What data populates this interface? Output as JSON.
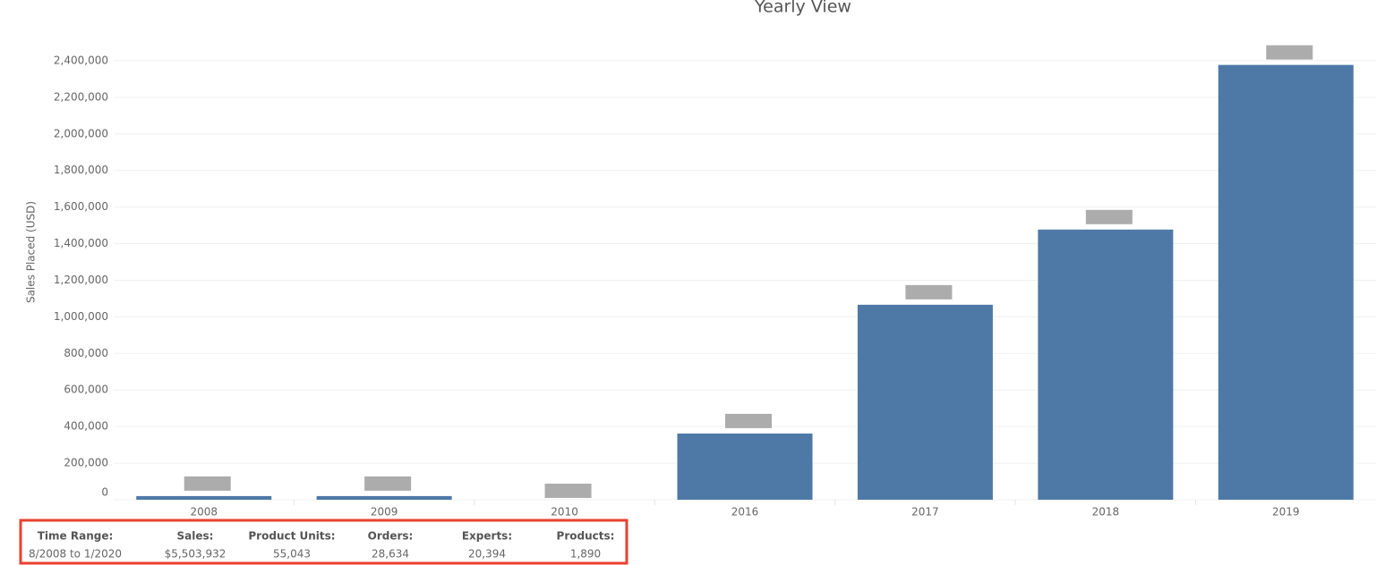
{
  "chart_data": {
    "type": "bar",
    "title": "Yearly View",
    "y_label": "Sales Placed (USD)",
    "categories": [
      "2008",
      "2009",
      "2010",
      "2016",
      "2017",
      "2018",
      "2019"
    ],
    "values": [
      20000,
      20000,
      0,
      362000,
      1066000,
      1477000,
      2377000
    ],
    "color": "#4e79a7",
    "ylim": [
      0,
      2600000
    ],
    "yticks": [
      0,
      {
        "value": 200000,
        "label": "200,000"
      },
      {
        "value": 400000,
        "label": "400,000"
      },
      {
        "value": 600000,
        "label": "600,000"
      },
      {
        "value": 800000,
        "label": "800,000"
      },
      {
        "value": 1000000,
        "label": "1,000,000"
      },
      {
        "value": 1200000,
        "label": "1,200,000"
      },
      {
        "value": 1400000,
        "label": "1,400,000"
      },
      {
        "value": 1600000,
        "label": "1,600,000"
      },
      {
        "value": 1800000,
        "label": "1,800,000"
      },
      {
        "value": 2000000,
        "label": "2,000,000"
      },
      {
        "value": 2200000,
        "label": "2,200,000"
      },
      {
        "value": 2400000,
        "label": "2,400,000"
      }
    ],
    "grid": true
  },
  "summary": {
    "headers": [
      "Time Range:",
      "Sales:",
      "Product Units:",
      "Orders:",
      "Experts:",
      "Products:"
    ],
    "values": [
      "8/2008 to 1/2020",
      "$5,503,932",
      "55,043",
      "28,634",
      "20,394",
      "1,890"
    ]
  }
}
